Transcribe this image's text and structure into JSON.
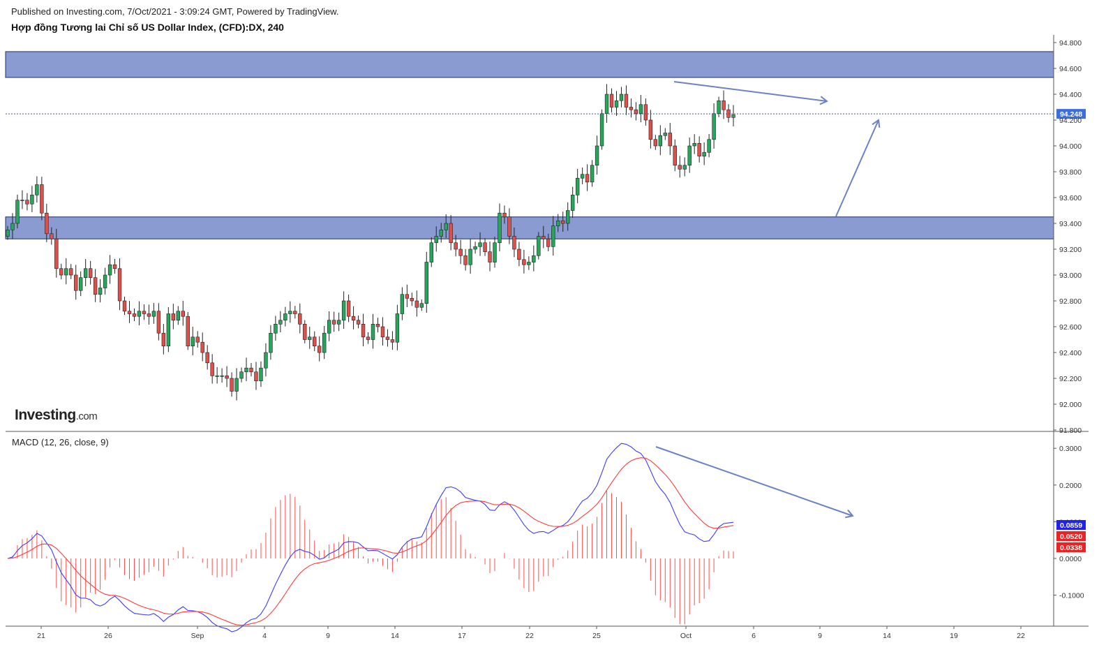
{
  "header": {
    "published": "Published on Investing.com, 7/Oct/2021 - 3:09:24 GMT, Powered by TradingView.",
    "title": "Hợp đồng Tương lai Chỉ số US Dollar Index, (CFD):DX, 240"
  },
  "logo": {
    "name": "Investing",
    "suffix": ".com"
  },
  "colors": {
    "up": "#26a65b",
    "down": "#e0504a",
    "zone": "#6b82c4",
    "annotation": "#6b82c4",
    "macd": "#3b3bff",
    "signal": "#ff3b3b",
    "hist": "#ff4d4d",
    "price_badge": "#3d6ee0"
  },
  "chart_data": [
    {
      "type": "candlestick",
      "title": "Hợp đồng Tương lai Chỉ số US Dollar Index, (CFD):DX, 240",
      "ylim": [
        91.8,
        94.85
      ],
      "y_ticks": [
        "91.800",
        "92.000",
        "92.200",
        "92.400",
        "92.600",
        "92.800",
        "93.000",
        "93.200",
        "93.400",
        "93.600",
        "93.800",
        "94.000",
        "94.200",
        "94.400",
        "94.600",
        "94.800"
      ],
      "x_ticks": [
        "21",
        "26",
        "Sep",
        "4",
        "9",
        "14",
        "17",
        "22",
        "25",
        "Oct",
        "6",
        "9",
        "14",
        "19",
        "22"
      ],
      "last_price": "94.248",
      "zones": [
        {
          "name": "resistance",
          "from": 94.53,
          "to": 94.73
        },
        {
          "name": "support",
          "from": 93.28,
          "to": 93.45
        }
      ],
      "closes": [
        93.35,
        93.4,
        93.58,
        93.58,
        93.55,
        93.62,
        93.7,
        93.48,
        93.32,
        93.28,
        93.05,
        93.0,
        93.05,
        93.0,
        92.88,
        92.98,
        93.05,
        92.98,
        92.85,
        92.9,
        93.0,
        93.08,
        93.05,
        92.8,
        92.72,
        92.7,
        92.68,
        92.72,
        92.7,
        92.68,
        92.72,
        92.55,
        92.45,
        92.7,
        92.65,
        92.72,
        92.68,
        92.45,
        92.52,
        92.48,
        92.4,
        92.32,
        92.22,
        92.22,
        92.22,
        92.2,
        92.1,
        92.2,
        92.25,
        92.28,
        92.25,
        92.18,
        92.28,
        92.4,
        92.55,
        92.62,
        92.65,
        92.7,
        92.72,
        92.7,
        92.62,
        92.5,
        92.52,
        92.45,
        92.4,
        92.55,
        92.65,
        92.62,
        92.65,
        92.8,
        92.68,
        92.65,
        92.62,
        92.52,
        92.5,
        92.62,
        92.6,
        92.52,
        92.5,
        92.48,
        92.7,
        92.85,
        92.82,
        92.8,
        92.75,
        92.78,
        93.1,
        93.25,
        93.3,
        93.35,
        93.4,
        93.25,
        93.2,
        93.15,
        93.08,
        93.2,
        93.22,
        93.25,
        93.18,
        93.1,
        93.25,
        93.48,
        93.45,
        93.3,
        93.2,
        93.12,
        93.08,
        93.1,
        93.15,
        93.3,
        93.28,
        93.22,
        93.38,
        93.42,
        93.4,
        93.5,
        93.62,
        93.75,
        93.78,
        93.72,
        93.85,
        94.0,
        94.25,
        94.4,
        94.3,
        94.35,
        94.4,
        94.3,
        94.28,
        94.25,
        94.32,
        94.2,
        94.05,
        94.0,
        94.08,
        94.1,
        94.0,
        93.85,
        93.82,
        93.85,
        94.0,
        94.02,
        93.92,
        93.95,
        94.05,
        94.25,
        94.35,
        94.28,
        94.22,
        94.24
      ]
    },
    {
      "type": "macd",
      "title": "MACD (12, 26, close, 9)",
      "ylim": [
        -0.18,
        0.31
      ],
      "y_ticks": [
        "0.3000",
        "0.2000",
        "0.1000",
        "0.0000",
        "-0.1000"
      ],
      "last_values": {
        "macd": "0.0859",
        "signal": "0.0520",
        "hist": "0.0338"
      }
    }
  ]
}
